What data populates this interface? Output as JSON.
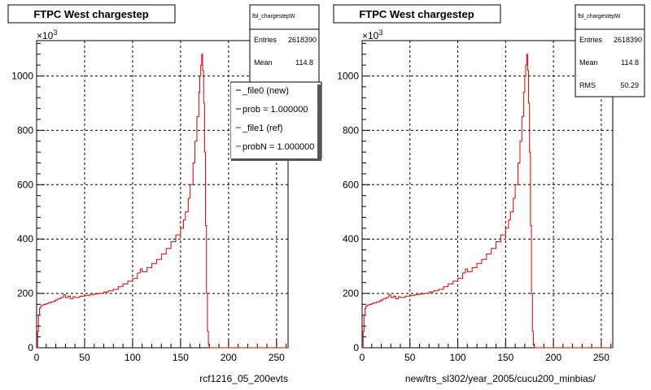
{
  "chart_data": [
    {
      "type": "line",
      "title": "FTPC West chargestep",
      "xlabel": "rcf1216_05_200evts",
      "ylabel": "",
      "y_multiplier": "×10",
      "y_multiplier_exp": "3",
      "xlim": [
        0,
        262
      ],
      "ylim": [
        0,
        1130
      ],
      "grid": true,
      "x_ticks": [
        0,
        50,
        100,
        150,
        200,
        250
      ],
      "y_ticks": [
        0,
        200,
        400,
        600,
        800,
        1000
      ],
      "stats": {
        "name": "fbl_chargestepW",
        "rows": [
          {
            "label": "Entries",
            "value": "2618390"
          },
          {
            "label": "Mean",
            "value": "114.8"
          }
        ]
      },
      "legend": {
        "entries": [
          {
            "label": "_file0 (new)",
            "color": "#000000"
          },
          {
            "label": "prob = 1.000000",
            "color": "#000000"
          },
          {
            "label": "_file1 (ref)",
            "color": "#e00000"
          },
          {
            "label": "probN = 1.000000",
            "color": "#e00000"
          }
        ]
      },
      "series": [
        {
          "color": "#e00000",
          "x": [
            0,
            1,
            2,
            3,
            4,
            5,
            6,
            8,
            10,
            12,
            15,
            18,
            20,
            22,
            25,
            28,
            30,
            33,
            35,
            38,
            40,
            45,
            50,
            55,
            60,
            65,
            70,
            75,
            80,
            85,
            90,
            95,
            100,
            105,
            108,
            110,
            115,
            120,
            125,
            130,
            135,
            140,
            145,
            150,
            153,
            155,
            158,
            160,
            163,
            165,
            167,
            169,
            170,
            171,
            172,
            173,
            174,
            175,
            176,
            177,
            178,
            179,
            180,
            262
          ],
          "y": [
            0,
            60,
            120,
            145,
            152,
            155,
            158,
            160,
            162,
            165,
            168,
            172,
            176,
            180,
            185,
            195,
            185,
            190,
            180,
            188,
            185,
            190,
            192,
            195,
            198,
            200,
            205,
            210,
            215,
            225,
            235,
            245,
            255,
            275,
            290,
            280,
            295,
            310,
            325,
            345,
            365,
            390,
            415,
            440,
            470,
            500,
            550,
            600,
            680,
            760,
            850,
            940,
            1000,
            1040,
            1080,
            1020,
            900,
            720,
            450,
            200,
            60,
            10,
            0,
            0
          ]
        }
      ]
    },
    {
      "type": "line",
      "title": "FTPC West chargestep",
      "xlabel": "new/trs_sl302/year_2005/cucu200_minbias/",
      "ylabel": "",
      "y_multiplier": "×10",
      "y_multiplier_exp": "3",
      "xlim": [
        0,
        262
      ],
      "ylim": [
        0,
        1130
      ],
      "grid": true,
      "x_ticks": [
        0,
        50,
        100,
        150,
        200,
        250
      ],
      "y_ticks": [
        0,
        200,
        400,
        600,
        800,
        1000
      ],
      "stats": {
        "name": "fbl_chargestepW",
        "rows": [
          {
            "label": "Entries",
            "value": "2618390"
          },
          {
            "label": "Mean",
            "value": "114.8"
          },
          {
            "label": "RMS",
            "value": "50.29"
          }
        ]
      },
      "series": [
        {
          "color": "#e00000",
          "x": [
            0,
            1,
            2,
            3,
            4,
            5,
            6,
            8,
            10,
            12,
            15,
            18,
            20,
            22,
            25,
            28,
            30,
            33,
            35,
            38,
            40,
            45,
            50,
            55,
            60,
            65,
            70,
            75,
            80,
            85,
            90,
            95,
            100,
            105,
            108,
            110,
            115,
            120,
            125,
            130,
            135,
            140,
            145,
            150,
            153,
            155,
            158,
            160,
            163,
            165,
            167,
            169,
            170,
            171,
            172,
            173,
            174,
            175,
            176,
            177,
            178,
            179,
            180,
            262
          ],
          "y": [
            0,
            60,
            120,
            145,
            152,
            155,
            158,
            160,
            162,
            165,
            168,
            172,
            176,
            180,
            185,
            195,
            185,
            190,
            180,
            188,
            185,
            190,
            192,
            195,
            198,
            200,
            205,
            210,
            215,
            225,
            235,
            245,
            255,
            275,
            290,
            280,
            295,
            310,
            325,
            345,
            365,
            390,
            415,
            440,
            470,
            500,
            550,
            600,
            680,
            760,
            850,
            940,
            1000,
            1040,
            1080,
            1020,
            900,
            720,
            450,
            200,
            60,
            10,
            0,
            0
          ]
        }
      ]
    }
  ]
}
